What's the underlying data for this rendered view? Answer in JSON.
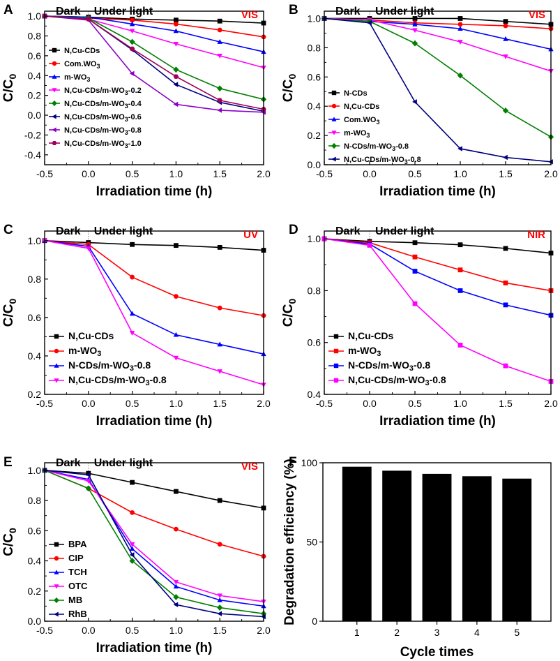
{
  "figure": {
    "colors": {
      "black": "#000000",
      "red": "#ff0000",
      "blue": "#0000ff",
      "magenta": "#ff00ff",
      "green": "#008000",
      "navy": "#000080",
      "purple": "#8b00c9",
      "maroon": "#a0005a"
    }
  },
  "chart_data": [
    {
      "id": "A",
      "type": "line",
      "panel_label": "A",
      "source_label": "VIS",
      "dark_label": "Dark",
      "light_label": "Under light",
      "xlabel": "Irradiation time (h)",
      "ylabel_main": "C/C",
      "ylabel_sub": "0",
      "xlim": [
        -0.5,
        2.0
      ],
      "ylim": [
        -0.5,
        1.05
      ],
      "xticks": [
        -0.5,
        0.0,
        0.5,
        1.0,
        1.5,
        2.0
      ],
      "xtick_labels": [
        "-0.5",
        "0.0",
        "0.5",
        "1.0",
        "1.5",
        "2.0"
      ],
      "yticks": [
        -0.4,
        -0.2,
        0.0,
        0.2,
        0.4,
        0.6,
        0.8,
        1.0
      ],
      "ytick_labels": [
        "-0.4",
        "-0.2",
        "0.0",
        "0.2",
        "0.4",
        "0.6",
        "0.8",
        "1.0"
      ],
      "legend_position": "lower-left",
      "legend_style": "small",
      "x": [
        -0.5,
        0.0,
        0.5,
        1.0,
        1.5,
        2.0
      ],
      "series": [
        {
          "name": "N,Cu-CDs",
          "label_main": "N,Cu-CDs",
          "label_sub": "",
          "label_tail": "",
          "color": "#000000",
          "marker": "square",
          "values": [
            1.0,
            0.99,
            0.97,
            0.96,
            0.95,
            0.93
          ]
        },
        {
          "name": "Com.WO3",
          "label_main": "Com.WO",
          "label_sub": "3",
          "label_tail": "",
          "color": "#ff0000",
          "marker": "circle",
          "values": [
            1.0,
            0.98,
            0.96,
            0.92,
            0.86,
            0.79
          ]
        },
        {
          "name": "m-WO3",
          "label_main": "m-WO",
          "label_sub": "3",
          "label_tail": "",
          "color": "#0000ff",
          "marker": "triangle-up",
          "values": [
            1.0,
            0.99,
            0.92,
            0.85,
            0.74,
            0.64
          ]
        },
        {
          "name": "N,Cu-CDs/m-WO3-0.2",
          "label_main": "N,Cu-CDs/m-WO",
          "label_sub": "3",
          "label_tail": "-0.2",
          "color": "#ff00ff",
          "marker": "triangle-down",
          "values": [
            1.0,
            0.97,
            0.85,
            0.72,
            0.6,
            0.48
          ]
        },
        {
          "name": "N,Cu-CDs/m-WO3-0.4",
          "label_main": "N,Cu-CDs/m-WO",
          "label_sub": "3",
          "label_tail": "-0.4",
          "color": "#008000",
          "marker": "diamond",
          "values": [
            1.0,
            0.98,
            0.74,
            0.46,
            0.27,
            0.16
          ]
        },
        {
          "name": "N,Cu-CDs/m-WO3-0.6",
          "label_main": "N,Cu-CDs/m-WO",
          "label_sub": "3",
          "label_tail": "-0.6",
          "color": "#000080",
          "marker": "triangle-left",
          "values": [
            1.0,
            0.97,
            0.66,
            0.31,
            0.13,
            0.04
          ]
        },
        {
          "name": "N,Cu-CDs/m-WO3-0.8",
          "label_main": "N,Cu-CDs/m-WO",
          "label_sub": "3",
          "label_tail": "-0.8",
          "color": "#8b00c9",
          "marker": "triangle-left",
          "values": [
            1.0,
            0.96,
            0.42,
            0.11,
            0.05,
            0.03
          ]
        },
        {
          "name": "N,Cu-CDs/m-WO3-1.0",
          "label_main": "N,Cu-CDs/m-WO",
          "label_sub": "3",
          "label_tail": "-1.0",
          "color": "#a0005a",
          "marker": "hexagon",
          "values": [
            1.0,
            0.97,
            0.67,
            0.39,
            0.15,
            0.06
          ]
        }
      ]
    },
    {
      "id": "B",
      "type": "line",
      "panel_label": "B",
      "source_label": "VIS",
      "dark_label": "Dark",
      "light_label": "Under light",
      "xlabel": "Irradiation time (h)",
      "ylabel_main": "C/C",
      "ylabel_sub": "0",
      "xlim": [
        -0.5,
        2.0
      ],
      "ylim": [
        0.0,
        1.05
      ],
      "xticks": [
        -0.5,
        0.0,
        0.5,
        1.0,
        1.5,
        2.0
      ],
      "xtick_labels": [
        "-0.5",
        "0.0",
        "0.5",
        "1.0",
        "1.5",
        "2.0"
      ],
      "yticks": [
        0.0,
        0.2,
        0.4,
        0.6,
        0.8,
        1.0
      ],
      "ytick_labels": [
        "0.0",
        "0.2",
        "0.4",
        "0.6",
        "0.8",
        "1.0"
      ],
      "legend_position": "lower-left",
      "legend_style": "small",
      "x": [
        -0.5,
        0.0,
        0.5,
        1.0,
        1.5,
        2.0
      ],
      "series": [
        {
          "name": "N-CDs",
          "label_main": "N-CDs",
          "label_sub": "",
          "label_tail": "",
          "color": "#000000",
          "marker": "square",
          "values": [
            1.0,
            1.0,
            1.0,
            1.0,
            0.98,
            0.96
          ]
        },
        {
          "name": "N,Cu-CDs",
          "label_main": "N,Cu-CDs",
          "label_sub": "",
          "label_tail": "",
          "color": "#ff0000",
          "marker": "circle",
          "values": [
            1.0,
            0.99,
            0.97,
            0.96,
            0.95,
            0.93
          ]
        },
        {
          "name": "Com.WO3",
          "label_main": "Com.WO",
          "label_sub": "3",
          "label_tail": "",
          "color": "#0000ff",
          "marker": "triangle-up",
          "values": [
            1.0,
            0.98,
            0.96,
            0.93,
            0.86,
            0.79
          ]
        },
        {
          "name": "m-WO3",
          "label_main": "m-WO",
          "label_sub": "3",
          "label_tail": "",
          "color": "#ff00ff",
          "marker": "triangle-down",
          "values": [
            1.0,
            0.99,
            0.92,
            0.84,
            0.74,
            0.64
          ]
        },
        {
          "name": "N-CDs/m-WO3-0.8",
          "label_main": "N-CDs/m-WO",
          "label_sub": "3",
          "label_tail": "-0.8",
          "color": "#008000",
          "marker": "diamond",
          "values": [
            1.0,
            0.98,
            0.83,
            0.61,
            0.37,
            0.19
          ]
        },
        {
          "name": "N,Cu-CDs/m-WO3-0.8",
          "label_main": "N,Cu-CDs/m-WO",
          "label_sub": "3",
          "label_tail": "-0.8",
          "color": "#000080",
          "marker": "triangle-left",
          "values": [
            1.0,
            0.97,
            0.43,
            0.11,
            0.05,
            0.02
          ]
        }
      ]
    },
    {
      "id": "C",
      "type": "line",
      "panel_label": "C",
      "source_label": "UV",
      "dark_label": "Dark",
      "light_label": "Under light",
      "xlabel": "Irradiation time (h)",
      "ylabel_main": "C/C",
      "ylabel_sub": "0",
      "xlim": [
        -0.5,
        2.0
      ],
      "ylim": [
        0.2,
        1.05
      ],
      "xticks": [
        -0.5,
        0.0,
        0.5,
        1.0,
        1.5,
        2.0
      ],
      "xtick_labels": [
        "-0.5",
        "0.0",
        "0.5",
        "1.0",
        "1.5",
        "2.0"
      ],
      "yticks": [
        0.2,
        0.4,
        0.6,
        0.8,
        1.0
      ],
      "ytick_labels": [
        "0.2",
        "0.4",
        "0.6",
        "0.8",
        "1.0"
      ],
      "legend_position": "lower-left",
      "legend_style": "big",
      "x": [
        -0.5,
        0.0,
        0.5,
        1.0,
        1.5,
        2.0
      ],
      "series": [
        {
          "name": "N,Cu-CDs",
          "label_main": "N,Cu-CDs",
          "label_sub": "",
          "label_tail": "",
          "color": "#000000",
          "marker": "square",
          "values": [
            1.0,
            0.99,
            0.98,
            0.975,
            0.965,
            0.95
          ]
        },
        {
          "name": "m-WO3",
          "label_main": "m-WO",
          "label_sub": "3",
          "label_tail": "",
          "color": "#ff0000",
          "marker": "circle",
          "values": [
            1.0,
            0.98,
            0.81,
            0.71,
            0.65,
            0.61
          ]
        },
        {
          "name": "N-CDs/m-WO3-0.8",
          "label_main": "N-CDs/m-WO",
          "label_sub": "3",
          "label_tail": "-0.8",
          "color": "#0000ff",
          "marker": "triangle-up",
          "values": [
            1.0,
            0.97,
            0.62,
            0.51,
            0.46,
            0.41
          ]
        },
        {
          "name": "N,Cu-CDs/m-WO3-0.8",
          "label_main": "N,Cu-CDs/m-WO",
          "label_sub": "3",
          "label_tail": "-0.8",
          "color": "#ff00ff",
          "marker": "triangle-down",
          "values": [
            1.0,
            0.96,
            0.52,
            0.39,
            0.32,
            0.25
          ]
        }
      ]
    },
    {
      "id": "D",
      "type": "line",
      "panel_label": "D",
      "source_label": "NIR",
      "dark_label": "Dark",
      "light_label": "Under light",
      "xlabel": "Irradiation time (h)",
      "ylabel_main": "C/C",
      "ylabel_sub": "0",
      "xlim": [
        -0.5,
        2.0
      ],
      "ylim": [
        0.4,
        1.03
      ],
      "xticks": [
        -0.5,
        0.0,
        0.5,
        1.0,
        1.5,
        2.0
      ],
      "xtick_labels": [
        "-0.5",
        "0.0",
        "0.5",
        "1.0",
        "1.5",
        "2.0"
      ],
      "yticks": [
        0.4,
        0.6,
        0.8,
        1.0
      ],
      "ytick_labels": [
        "0.4",
        "0.6",
        "0.8",
        "1.0"
      ],
      "legend_position": "lower-left",
      "legend_style": "big",
      "x": [
        -0.5,
        0.0,
        0.5,
        1.0,
        1.5,
        2.0
      ],
      "series": [
        {
          "name": "N,Cu-CDs",
          "label_main": "N,Cu-CDs",
          "label_sub": "",
          "label_tail": "",
          "color": "#000000",
          "marker": "square",
          "values": [
            1.0,
            0.99,
            0.985,
            0.977,
            0.963,
            0.945
          ]
        },
        {
          "name": "m-WO3",
          "label_main": "m-WO",
          "label_sub": "3",
          "label_tail": "",
          "color": "#ff0000",
          "marker": "square",
          "values": [
            1.0,
            0.985,
            0.93,
            0.88,
            0.83,
            0.8
          ]
        },
        {
          "name": "N-CDs/m-WO3-0.8",
          "label_main": "N-CDs/m-WO",
          "label_sub": "3",
          "label_tail": "-0.8",
          "color": "#0000ff",
          "marker": "square",
          "values": [
            1.0,
            0.98,
            0.875,
            0.8,
            0.745,
            0.705
          ]
        },
        {
          "name": "N,Cu-CDs/m-WO3-0.8",
          "label_main": "N,Cu-CDs/m-WO",
          "label_sub": "3",
          "label_tail": "-0.8",
          "color": "#ff00ff",
          "marker": "square",
          "values": [
            1.0,
            0.975,
            0.75,
            0.59,
            0.51,
            0.45
          ]
        }
      ]
    },
    {
      "id": "E",
      "type": "line",
      "panel_label": "E",
      "source_label": "VIS",
      "dark_label": "Dark",
      "light_label": "Under light",
      "xlabel": "Irradiation time (h)",
      "ylabel_main": "C/C",
      "ylabel_sub": "0",
      "xlim": [
        -0.5,
        2.0
      ],
      "ylim": [
        0.0,
        1.05
      ],
      "xticks": [
        -0.5,
        0.0,
        0.5,
        1.0,
        1.5,
        2.0
      ],
      "xtick_labels": [
        "-0.5",
        "0.0",
        "0.5",
        "1.0",
        "1.5",
        "2.0"
      ],
      "yticks": [
        0.0,
        0.2,
        0.4,
        0.6,
        0.8,
        1.0
      ],
      "ytick_labels": [
        "0.0",
        "0.2",
        "0.4",
        "0.6",
        "0.8",
        "1.0"
      ],
      "legend_position": "lower-left",
      "legend_style": "medium",
      "x": [
        -0.5,
        0.0,
        0.5,
        1.0,
        1.5,
        2.0
      ],
      "series": [
        {
          "name": "BPA",
          "label_main": "BPA",
          "label_sub": "",
          "label_tail": "",
          "color": "#000000",
          "marker": "square",
          "values": [
            1.0,
            0.98,
            0.92,
            0.86,
            0.8,
            0.75
          ]
        },
        {
          "name": "CIP",
          "label_main": "CIP",
          "label_sub": "",
          "label_tail": "",
          "color": "#ff0000",
          "marker": "circle",
          "values": [
            1.0,
            0.88,
            0.72,
            0.61,
            0.51,
            0.43
          ]
        },
        {
          "name": "TCH",
          "label_main": "TCH",
          "label_sub": "",
          "label_tail": "",
          "color": "#0000ff",
          "marker": "triangle-up",
          "values": [
            1.0,
            0.94,
            0.48,
            0.23,
            0.14,
            0.1
          ]
        },
        {
          "name": "OTC",
          "label_main": "OTC",
          "label_sub": "",
          "label_tail": "",
          "color": "#ff00ff",
          "marker": "triangle-down",
          "values": [
            1.0,
            0.93,
            0.51,
            0.26,
            0.17,
            0.13
          ]
        },
        {
          "name": "MB",
          "label_main": "MB",
          "label_sub": "",
          "label_tail": "",
          "color": "#008000",
          "marker": "diamond",
          "values": [
            1.0,
            0.88,
            0.4,
            0.16,
            0.09,
            0.05
          ]
        },
        {
          "name": "RhB",
          "label_main": "RhB",
          "label_sub": "",
          "label_tail": "",
          "color": "#000080",
          "marker": "triangle-left",
          "values": [
            1.0,
            0.97,
            0.44,
            0.11,
            0.05,
            0.03
          ]
        }
      ]
    },
    {
      "id": "F",
      "type": "bar",
      "panel_label": "F",
      "xlabel": "Cycle times",
      "ylabel": "Degradation efficiency (%)",
      "categories": [
        "1",
        "2",
        "3",
        "4",
        "5"
      ],
      "values": [
        97.5,
        95.0,
        93.0,
        91.5,
        90.0
      ],
      "ylim": [
        0,
        100
      ],
      "yticks": [
        0,
        50,
        100
      ],
      "ytick_labels": [
        "0",
        "50",
        "100"
      ],
      "bar_color": "#000000"
    }
  ]
}
